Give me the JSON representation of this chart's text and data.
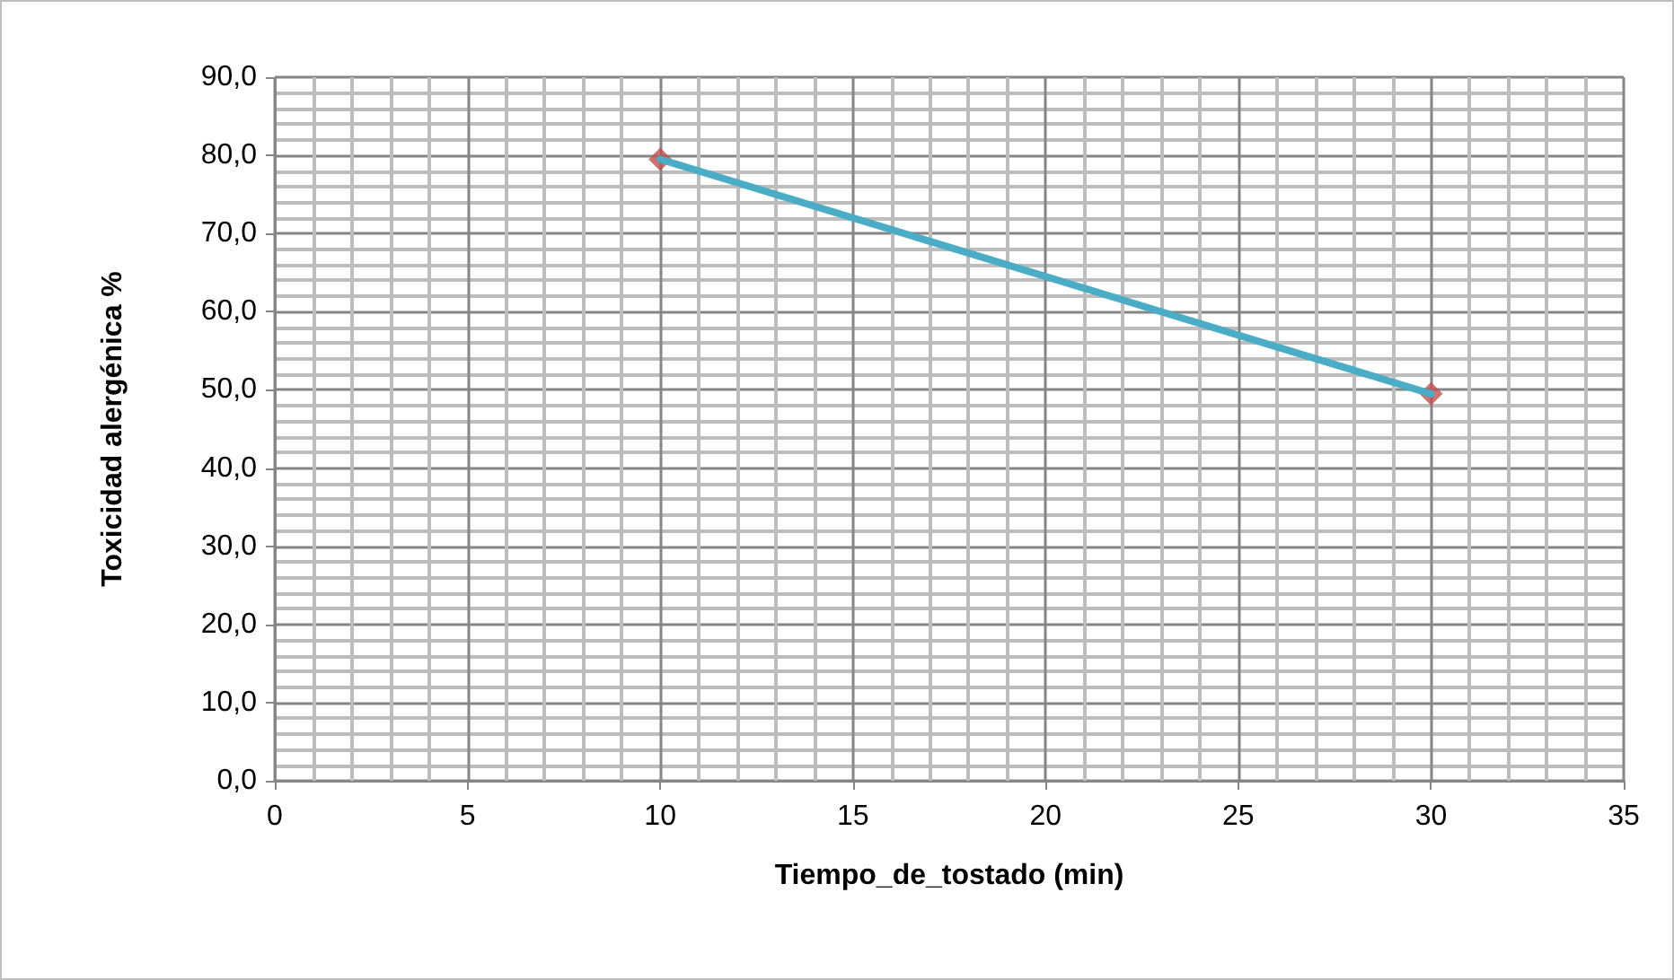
{
  "chart_data": {
    "type": "scatter",
    "xlabel": "Tiempo_de_tostado (min)",
    "ylabel": "Toxicidad alergénica %",
    "series": [
      {
        "color": "#c0504d",
        "values": [
          79.5,
          49.5
        ],
        "marker": "diamond"
      },
      {
        "type": "line",
        "color": "#4bacc6",
        "values": [
          79.5,
          49.5
        ],
        "marker": "none"
      }
    ],
    "x": [
      10,
      30
    ],
    "xlim": [
      0,
      35
    ],
    "xticks": [
      0,
      5,
      10,
      15,
      20,
      25,
      30,
      35
    ],
    "ylim": [
      0,
      90
    ],
    "yticks": [
      {
        "value": 0,
        "label": "0,0"
      },
      {
        "value": 10,
        "label": "10,0"
      },
      {
        "value": 20,
        "label": "20,0"
      },
      {
        "value": 30,
        "label": "30,0"
      },
      {
        "value": 40,
        "label": "40,0"
      },
      {
        "value": 50,
        "label": "50,0"
      },
      {
        "value": 60,
        "label": "60,0"
      },
      {
        "value": 70,
        "label": "70,0"
      },
      {
        "value": 80,
        "label": "80,0"
      },
      {
        "value": 90,
        "label": "90,0"
      }
    ],
    "grid": true
  }
}
